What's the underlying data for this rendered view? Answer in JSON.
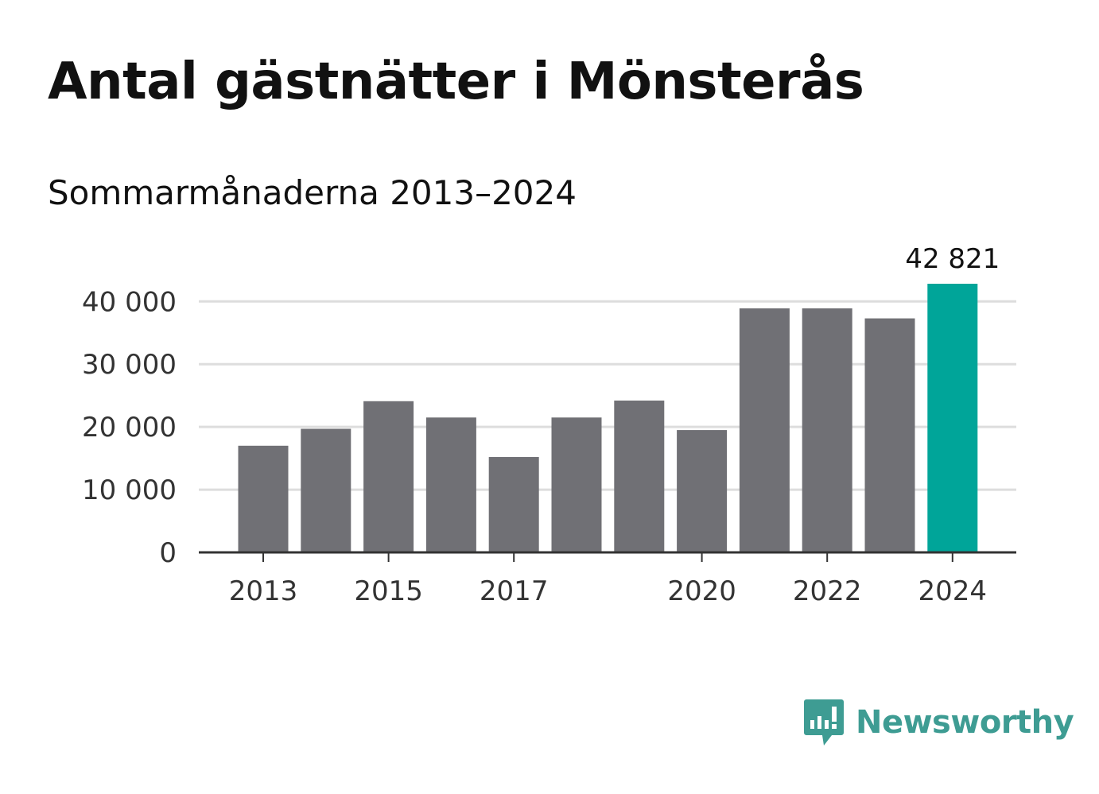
{
  "colors": {
    "bar": "#707075",
    "highlight": "#00a599",
    "grid": "#dddddd",
    "axis": "#333333",
    "brand": "#3e9c93"
  },
  "logo": {
    "text": "Newsworthy",
    "icon": "newsworthy-chart-bubble-icon"
  },
  "chart_data": {
    "type": "bar",
    "title": "Antal gästnätter i Mönsterås",
    "subtitle": "Sommarmånaderna 2013–2024",
    "xlabel": "",
    "ylabel": "",
    "categories": [
      "2013",
      "2014",
      "2015",
      "2016",
      "2017",
      "2018",
      "2019",
      "2020",
      "2021",
      "2022",
      "2023",
      "2024"
    ],
    "values": [
      17000,
      19700,
      24100,
      21500,
      15200,
      21500,
      24200,
      19500,
      38900,
      38900,
      37300,
      42821
    ],
    "highlight_index": 11,
    "highlight_label": "42 821",
    "x_tick_labels": [
      "2013",
      "2015",
      "2017",
      "2020",
      "2022",
      "2024"
    ],
    "y_ticks": [
      0,
      10000,
      20000,
      30000,
      40000
    ],
    "y_tick_labels": [
      "0",
      "10 000",
      "20 000",
      "30 000",
      "40 000"
    ],
    "ylim": [
      0,
      42821
    ],
    "grid": true,
    "legend": "none"
  }
}
